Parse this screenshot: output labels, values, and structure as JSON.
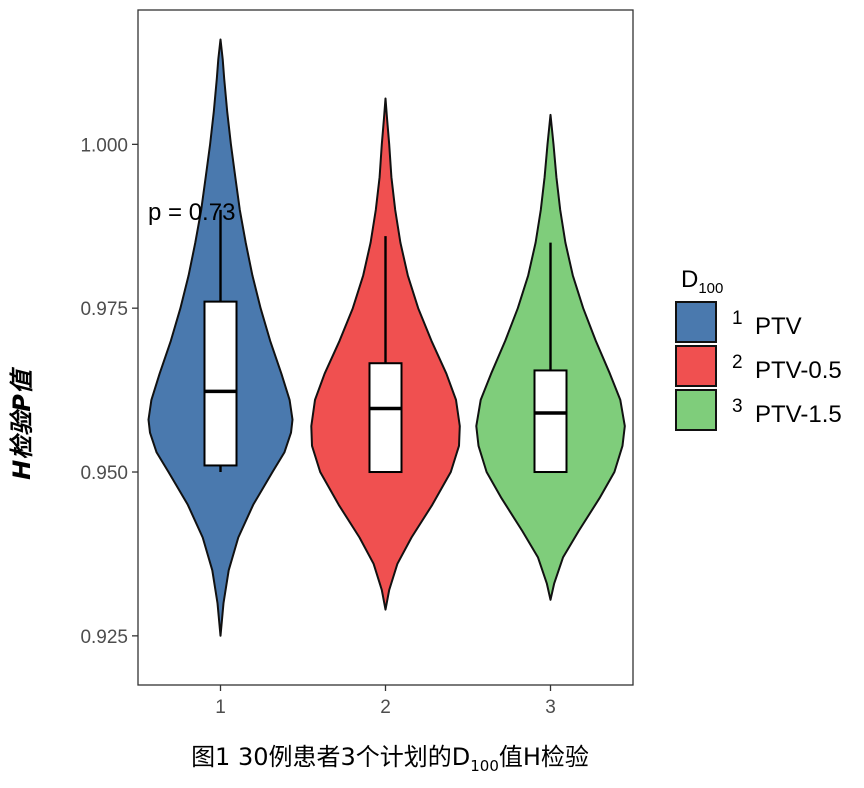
{
  "chart_data": {
    "type": "violin",
    "title": "",
    "ylabel": "H检验P值",
    "xlabel": "",
    "ylim": [
      0.9175,
      1.0205
    ],
    "yticks": [
      0.925,
      0.95,
      0.975,
      1.0
    ],
    "ytick_labels": [
      "0.925",
      "0.950",
      "0.975",
      "1.000"
    ],
    "categories": [
      "1",
      "2",
      "3"
    ],
    "annotation": "p = 0.73",
    "grid": false,
    "legend": {
      "position": "right",
      "title_main": "D",
      "title_sub": "100",
      "entries": [
        {
          "key": "1",
          "label": "PTV",
          "color": "#4a79ae"
        },
        {
          "key": "2",
          "label": "PTV-0.5",
          "color": "#f05050"
        },
        {
          "key": "3",
          "label": "PTV-1.5",
          "color": "#7fcd7b"
        }
      ]
    },
    "series": [
      {
        "category": "1",
        "color": "#4a79ae",
        "violin_min": 0.925,
        "violin_max": 1.016,
        "density": [
          [
            0.925,
            0.0
          ],
          [
            0.93,
            0.04
          ],
          [
            0.935,
            0.11
          ],
          [
            0.94,
            0.24
          ],
          [
            0.945,
            0.44
          ],
          [
            0.95,
            0.7
          ],
          [
            0.953,
            0.86
          ],
          [
            0.956,
            0.95
          ],
          [
            0.958,
            0.97
          ],
          [
            0.961,
            0.93
          ],
          [
            0.965,
            0.82
          ],
          [
            0.97,
            0.67
          ],
          [
            0.975,
            0.54
          ],
          [
            0.98,
            0.43
          ],
          [
            0.985,
            0.34
          ],
          [
            0.99,
            0.26
          ],
          [
            0.995,
            0.2
          ],
          [
            1.0,
            0.14
          ],
          [
            1.005,
            0.09
          ],
          [
            1.01,
            0.05
          ],
          [
            1.013,
            0.03
          ],
          [
            1.016,
            0.0
          ]
        ],
        "box": {
          "whisker_low": 0.95,
          "q1": 0.951,
          "median": 0.9623,
          "q3": 0.976,
          "whisker_high": 0.99
        }
      },
      {
        "category": "2",
        "color": "#f05050",
        "violin_min": 0.929,
        "violin_max": 1.007,
        "density": [
          [
            0.929,
            0.0
          ],
          [
            0.932,
            0.05
          ],
          [
            0.936,
            0.16
          ],
          [
            0.94,
            0.35
          ],
          [
            0.945,
            0.63
          ],
          [
            0.95,
            0.88
          ],
          [
            0.954,
            0.99
          ],
          [
            0.957,
            1.0
          ],
          [
            0.961,
            0.95
          ],
          [
            0.965,
            0.82
          ],
          [
            0.97,
            0.62
          ],
          [
            0.975,
            0.44
          ],
          [
            0.98,
            0.3
          ],
          [
            0.985,
            0.2
          ],
          [
            0.99,
            0.13
          ],
          [
            0.995,
            0.08
          ],
          [
            1.0,
            0.05
          ],
          [
            1.004,
            0.02
          ],
          [
            1.007,
            0.0
          ]
        ],
        "box": {
          "whisker_low": 0.95,
          "q1": 0.95,
          "median": 0.9597,
          "q3": 0.9666,
          "whisker_high": 0.986
        }
      },
      {
        "category": "3",
        "color": "#7fcd7b",
        "violin_min": 0.9305,
        "violin_max": 1.0045,
        "density": [
          [
            0.9305,
            0.0
          ],
          [
            0.933,
            0.05
          ],
          [
            0.937,
            0.17
          ],
          [
            0.941,
            0.38
          ],
          [
            0.946,
            0.66
          ],
          [
            0.95,
            0.86
          ],
          [
            0.954,
            0.97
          ],
          [
            0.957,
            1.0
          ],
          [
            0.961,
            0.94
          ],
          [
            0.965,
            0.8
          ],
          [
            0.97,
            0.61
          ],
          [
            0.975,
            0.44
          ],
          [
            0.98,
            0.3
          ],
          [
            0.985,
            0.2
          ],
          [
            0.99,
            0.13
          ],
          [
            0.995,
            0.08
          ],
          [
            1.0,
            0.04
          ],
          [
            1.0045,
            0.0
          ]
        ],
        "box": {
          "whisker_low": 0.95,
          "q1": 0.95,
          "median": 0.959,
          "q3": 0.9655,
          "whisker_high": 0.985
        }
      }
    ]
  },
  "caption": {
    "prefix": "图1 30例患者3个计划的D",
    "sub": "100",
    "suffix": "值H检验"
  }
}
